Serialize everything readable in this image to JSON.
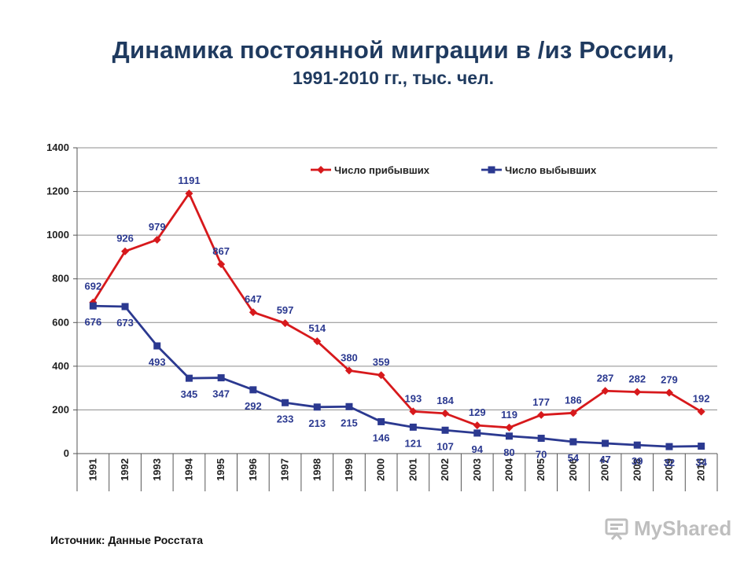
{
  "title": "Динамика постоянной миграции в /из России,",
  "subtitle": "1991-2010 гг., тыс. чел.",
  "source": "Источник: Данные Росстата",
  "watermark": "MyShared",
  "colors": {
    "arrivals": "#d7191c",
    "departures": "#2b3990",
    "grid": "#8c8c8c",
    "axis": "#555555",
    "title": "#1f3a5f"
  },
  "chart_data": {
    "type": "line",
    "title": "Динамика постоянной миграции в /из России, 1991-2010 гг., тыс. чел.",
    "x": [
      "1991",
      "1992",
      "1993",
      "1994",
      "1995",
      "1996",
      "1997",
      "1998",
      "1999",
      "2000",
      "2001",
      "2002",
      "2003",
      "2004",
      "2005",
      "2006",
      "2007",
      "2008",
      "2009",
      "2010"
    ],
    "ylim": [
      0,
      1400
    ],
    "yticks": [
      0,
      200,
      400,
      600,
      800,
      1000,
      1200,
      1400
    ],
    "grid": true,
    "legend_position": "top-right",
    "series": [
      {
        "name": "Число прибывших",
        "marker": "diamond",
        "values": [
          692,
          926,
          979,
          1191,
          867,
          647,
          597,
          514,
          380,
          359,
          193,
          184,
          129,
          119,
          177,
          186,
          287,
          282,
          279,
          192
        ]
      },
      {
        "name": "Число выбывших",
        "marker": "square",
        "values": [
          676,
          673,
          493,
          345,
          347,
          292,
          233,
          213,
          215,
          146,
          121,
          107,
          94,
          80,
          70,
          54,
          47,
          39,
          32,
          34
        ]
      }
    ]
  }
}
